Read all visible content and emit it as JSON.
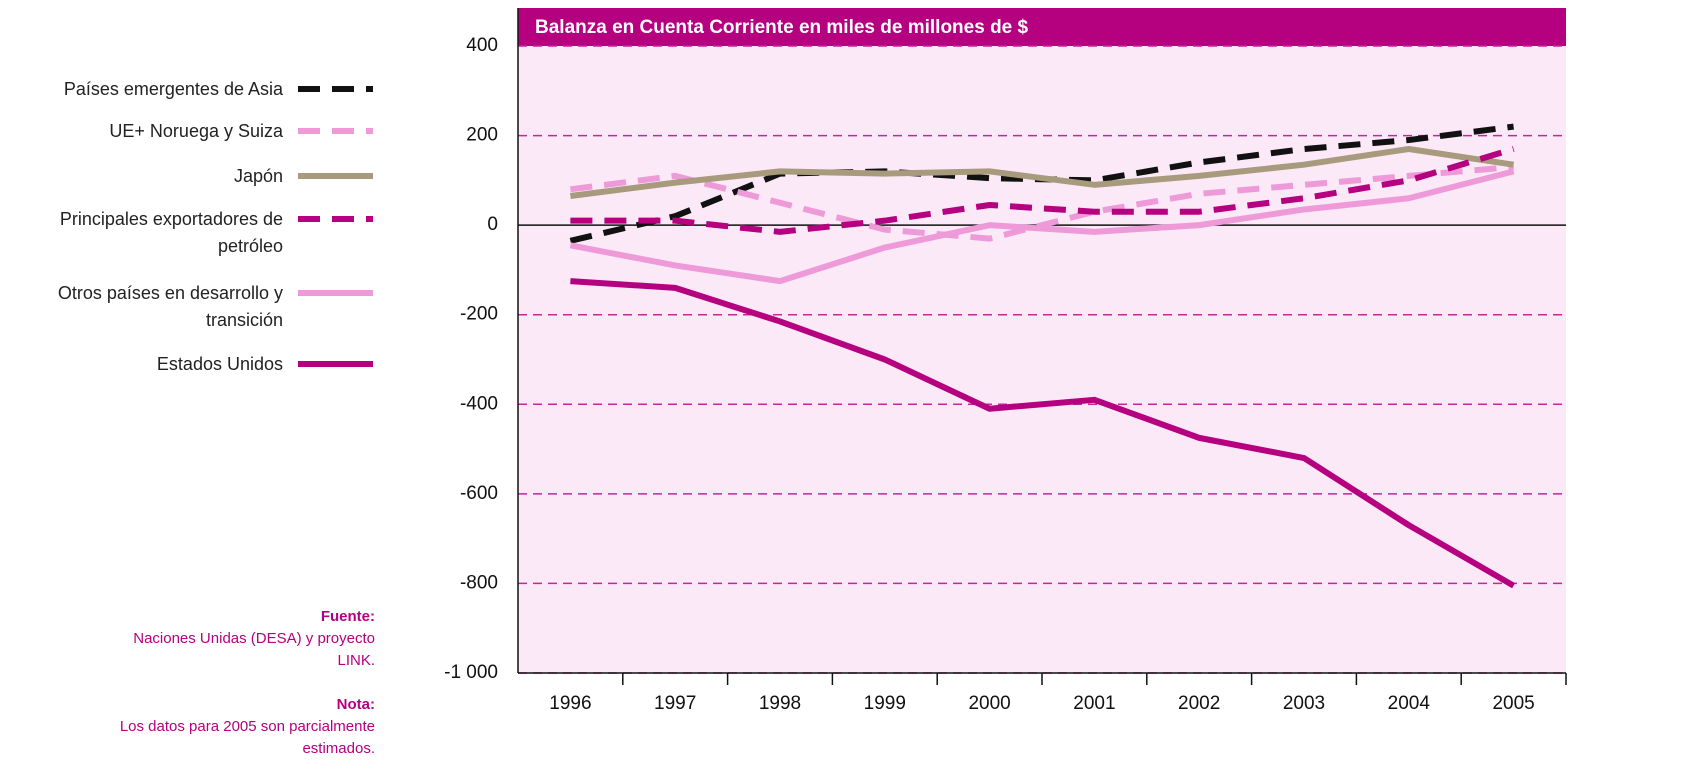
{
  "chart_data": {
    "type": "line",
    "title": "Balanza en Cuenta Corriente en miles de millones de $",
    "categories": [
      "1996",
      "1997",
      "1998",
      "1999",
      "2000",
      "2001",
      "2002",
      "2003",
      "2004",
      "2005"
    ],
    "series": [
      {
        "name": "Países emergentes de Asia",
        "color": "#111111",
        "dash": true,
        "values": [
          -35,
          20,
          115,
          120,
          105,
          100,
          140,
          170,
          190,
          220
        ]
      },
      {
        "name": "UE+ Noruega y Suiza",
        "color": "#ee9ad8",
        "dash": true,
        "values": [
          80,
          110,
          50,
          -10,
          -30,
          30,
          70,
          90,
          110,
          130
        ]
      },
      {
        "name": "Japón",
        "color": "#a89a7c",
        "dash": false,
        "values": [
          65,
          95,
          120,
          115,
          120,
          90,
          110,
          135,
          170,
          135
        ]
      },
      {
        "name": "Principales exportadores de petróleo",
        "color": "#b5007f",
        "dash": true,
        "values": [
          10,
          10,
          -15,
          10,
          45,
          30,
          30,
          60,
          100,
          170
        ]
      },
      {
        "name": "Otros países en desarrollo y transición",
        "color": "#ee9ad8",
        "dash": false,
        "values": [
          -45,
          -90,
          -125,
          -50,
          0,
          -15,
          0,
          35,
          60,
          120
        ]
      },
      {
        "name": "Estados Unidos",
        "color": "#b5007f",
        "dash": false,
        "values": [
          -125,
          -140,
          -215,
          -300,
          -410,
          -390,
          -475,
          -520,
          -670,
          -805
        ]
      }
    ],
    "ylim": [
      -1000,
      400
    ],
    "yticks": [
      {
        "value": -1000,
        "label": "-1 000"
      },
      -800,
      -600,
      -400,
      -200,
      0,
      200,
      400
    ],
    "grid": true,
    "notes": {
      "source_label": "Fuente:",
      "source": "Naciones Unidas (DESA) y proyecto LINK.",
      "note_label": "Nota:",
      "note": "Los datos para 2005 son parcialmente estimados."
    }
  }
}
